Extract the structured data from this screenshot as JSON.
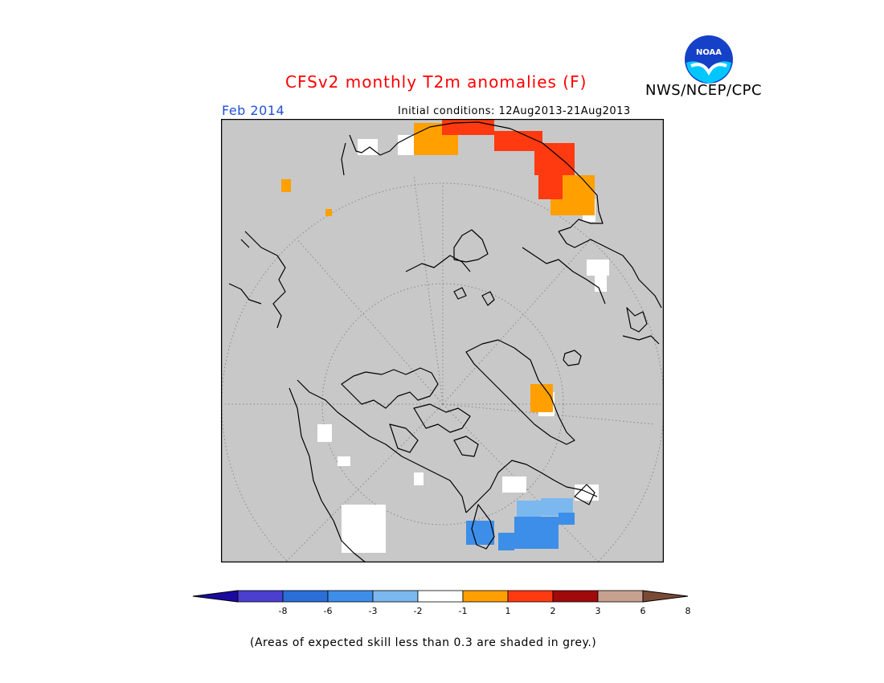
{
  "header": {
    "title": "CFSv2 monthly T2m anomalies (F)",
    "agency": "NWS/NCEP/CPC",
    "logo_text": "NOAA",
    "period": "Feb 2014",
    "initial_conditions": "Initial conditions: 12Aug2013-21Aug2013"
  },
  "map": {
    "background_color": "#c8c8c8",
    "coastline_color": "#000000",
    "graticule_color": "#888888"
  },
  "colorbar": {
    "colors": [
      "#1a0aa0",
      "#4a3fd0",
      "#2a6ed8",
      "#3d8ee8",
      "#7bb8f0",
      "#ffffff",
      "#ffa000",
      "#ff3a10",
      "#a00a0a",
      "#c8a090",
      "#7a4a34"
    ],
    "labels": [
      "-8",
      "-6",
      "-3",
      "-2",
      "-1",
      "1",
      "2",
      "3",
      "6",
      "8"
    ]
  },
  "footer": {
    "note": "(Areas of expected skill less than 0.3 are shaded in grey.)"
  }
}
